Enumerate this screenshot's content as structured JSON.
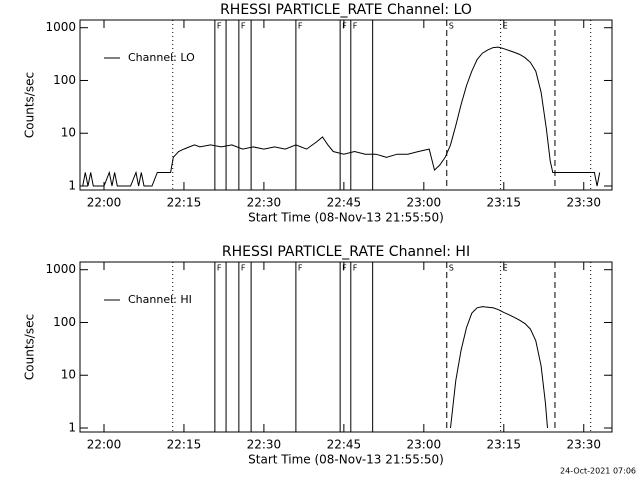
{
  "chart_data": [
    {
      "type": "line",
      "title": "RHESSI PARTICLE_RATE Channel: LO",
      "xlabel": "Start Time (08-Nov-13 21:55:50)",
      "ylabel": "Counts/sec",
      "ylog": true,
      "grid": false,
      "legend": "upper left",
      "xlim": [
        1315.5,
        1415.3
      ],
      "ylim": [
        0.84,
        1400
      ],
      "xticks": [
        {
          "value": 1320,
          "label": "22:00"
        },
        {
          "value": 1335,
          "label": "22:15"
        },
        {
          "value": 1350,
          "label": "22:30"
        },
        {
          "value": 1365,
          "label": "22:45"
        },
        {
          "value": 1380,
          "label": "23:00"
        },
        {
          "value": 1395,
          "label": "23:15"
        },
        {
          "value": 1410,
          "label": "23:30"
        }
      ],
      "yticks": [
        1,
        10,
        100,
        1000
      ],
      "markers": [
        {
          "x": 1332.9,
          "style": "dotted"
        },
        {
          "x": 1340.8,
          "style": "solid",
          "label": "F"
        },
        {
          "x": 1342.9,
          "style": "solid"
        },
        {
          "x": 1345.3,
          "style": "solid",
          "label": "F"
        },
        {
          "x": 1347.6,
          "style": "solid"
        },
        {
          "x": 1356.0,
          "style": "solid",
          "label": "F"
        },
        {
          "x": 1364.3,
          "style": "solid",
          "label": "F"
        },
        {
          "x": 1366.3,
          "style": "solid",
          "label": "F"
        },
        {
          "x": 1370.4,
          "style": "solid"
        },
        {
          "x": 1384.3,
          "style": "dashed",
          "label": "S"
        },
        {
          "x": 1394.4,
          "style": "dotted",
          "label": "E"
        },
        {
          "x": 1404.6,
          "style": "dashed"
        },
        {
          "x": 1411.3,
          "style": "dotted"
        }
      ],
      "x": [
        1316,
        1316.5,
        1317,
        1317.5,
        1318,
        1320,
        1321,
        1321.5,
        1322,
        1322.5,
        1325,
        1326,
        1326.5,
        1327,
        1327.5,
        1329,
        1330,
        1332.5,
        1333,
        1334,
        1335,
        1336,
        1337,
        1338,
        1340,
        1342,
        1344,
        1346,
        1348,
        1350,
        1352,
        1354,
        1356,
        1358,
        1360,
        1361,
        1362,
        1363,
        1365,
        1367,
        1369,
        1371,
        1373,
        1375,
        1377,
        1379,
        1381,
        1382,
        1383,
        1384,
        1385,
        1386,
        1387,
        1388,
        1389,
        1390,
        1391,
        1392,
        1393,
        1394,
        1395,
        1396,
        1397,
        1398,
        1399,
        1400,
        1401,
        1402,
        1403,
        1403.7,
        1404.2,
        1412,
        1412.5,
        1413
      ],
      "series": [
        {
          "name": "Channel: LO",
          "color": "#000000",
          "values": [
            1,
            1.8,
            1,
            1.8,
            1,
            1,
            1.8,
            1,
            1.8,
            1,
            1,
            1.8,
            1,
            1.8,
            1,
            1,
            1.8,
            1.8,
            3.5,
            4.5,
            5,
            5.5,
            6,
            5.5,
            6,
            5.5,
            6,
            5,
            5.5,
            5,
            5.5,
            5,
            6,
            5,
            7,
            8.5,
            6,
            4.5,
            4,
            4.5,
            4,
            4,
            3.5,
            4,
            4,
            4.5,
            5,
            2,
            2.5,
            3.5,
            6,
            14,
            35,
            80,
            150,
            250,
            330,
            380,
            420,
            430,
            400,
            370,
            340,
            310,
            270,
            220,
            150,
            60,
            12,
            3,
            1.8,
            1.8,
            1,
            1.8
          ]
        }
      ]
    },
    {
      "type": "line",
      "title": "RHESSI PARTICLE_RATE Channel: HI",
      "xlabel": "Start Time (08-Nov-13 21:55:50)",
      "ylabel": "Counts/sec",
      "ylog": true,
      "grid": false,
      "legend": "upper left",
      "xlim": [
        1315.5,
        1415.3
      ],
      "ylim": [
        0.84,
        1400
      ],
      "xticks": [
        {
          "value": 1320,
          "label": "22:00"
        },
        {
          "value": 1335,
          "label": "22:15"
        },
        {
          "value": 1350,
          "label": "22:30"
        },
        {
          "value": 1365,
          "label": "22:45"
        },
        {
          "value": 1380,
          "label": "23:00"
        },
        {
          "value": 1395,
          "label": "23:15"
        },
        {
          "value": 1410,
          "label": "23:30"
        }
      ],
      "yticks": [
        1,
        10,
        100,
        1000
      ],
      "markers": [
        {
          "x": 1332.9,
          "style": "dotted"
        },
        {
          "x": 1340.8,
          "style": "solid",
          "label": "F"
        },
        {
          "x": 1342.9,
          "style": "solid"
        },
        {
          "x": 1345.3,
          "style": "solid",
          "label": "F"
        },
        {
          "x": 1347.6,
          "style": "solid"
        },
        {
          "x": 1356.0,
          "style": "solid",
          "label": "F"
        },
        {
          "x": 1364.3,
          "style": "solid",
          "label": "F"
        },
        {
          "x": 1366.3,
          "style": "solid",
          "label": "F"
        },
        {
          "x": 1370.4,
          "style": "solid"
        },
        {
          "x": 1384.3,
          "style": "dashed",
          "label": "S"
        },
        {
          "x": 1394.4,
          "style": "dotted",
          "label": "E"
        },
        {
          "x": 1404.6,
          "style": "dashed"
        },
        {
          "x": 1411.3,
          "style": "dotted"
        }
      ],
      "x": [
        1385,
        1386,
        1387,
        1388,
        1389,
        1390,
        1391,
        1392,
        1393,
        1394,
        1395,
        1396,
        1397,
        1398,
        1399,
        1400,
        1401,
        1402,
        1402.8,
        1403.2
      ],
      "series": [
        {
          "name": "Channel: HI",
          "color": "#000000",
          "values": [
            1,
            8,
            30,
            80,
            150,
            190,
            200,
            195,
            190,
            175,
            155,
            140,
            125,
            110,
            95,
            75,
            45,
            15,
            3,
            1
          ]
        }
      ]
    }
  ],
  "footer": "24-Oct-2021 07:06"
}
